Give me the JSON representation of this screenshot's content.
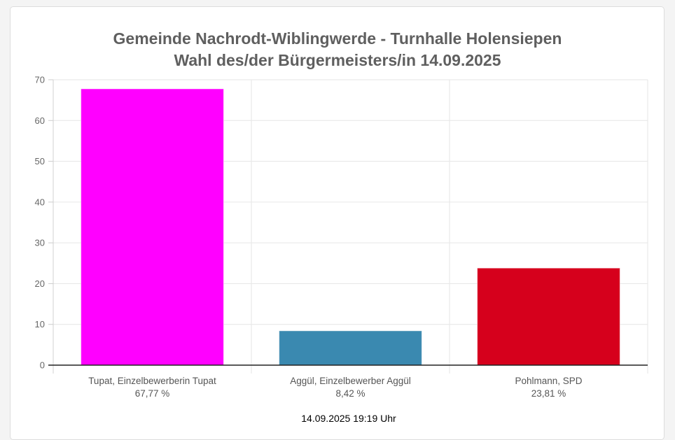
{
  "chart_data": {
    "type": "bar",
    "title_line1": "Gemeinde Nachrodt-Wiblingwerde - Turnhalle Holensiepen",
    "title_line2": "Wahl des/der Bürgermeisters/in 14.09.2025",
    "categories": [
      "Tupat, Einzelbewerberin Tupat",
      "Aggül, Einzelbewerber Aggül",
      "Pohlmann, SPD"
    ],
    "values": [
      67.77,
      8.42,
      23.81
    ],
    "value_labels": [
      "67,77 %",
      "8,42 %",
      "23,81 %"
    ],
    "colors": [
      "#ff00ff",
      "#3a89b0",
      "#d6001c"
    ],
    "ylim": [
      0,
      70
    ],
    "yticks": [
      "0",
      "10",
      "20",
      "30",
      "40",
      "50",
      "60",
      "70"
    ],
    "grid": true,
    "legend": "none"
  },
  "footer": {
    "timestamp": "14.09.2025 19:19 Uhr"
  }
}
